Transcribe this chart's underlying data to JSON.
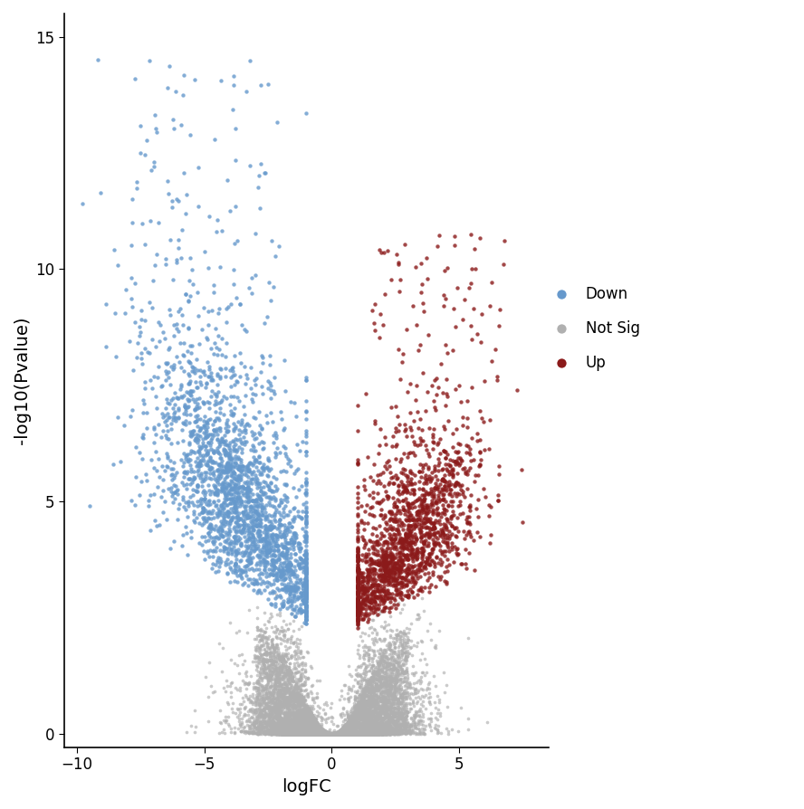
{
  "title": "",
  "xlabel": "logFC",
  "ylabel": "-log10(Pvalue)",
  "xlim": [
    -10.5,
    8.5
  ],
  "ylim": [
    -0.3,
    15.5
  ],
  "xticks": [
    -10,
    -5,
    0,
    5
  ],
  "yticks": [
    0,
    5,
    10,
    15
  ],
  "fc_threshold": 1.0,
  "pval_threshold": 2.0,
  "down_color": "#6699cc",
  "up_color": "#8b1a1a",
  "notsig_color": "#b0b0b0",
  "point_size": 7,
  "alpha_notsig": 0.65,
  "alpha_sig": 0.8,
  "legend_labels": [
    "Down",
    "Not Sig",
    "Up"
  ],
  "legend_colors": [
    "#6699cc",
    "#b0b0b0",
    "#8b1a1a"
  ],
  "seed": 123,
  "background_color": "#ffffff",
  "spine_color": "#000000",
  "label_fontsize": 14,
  "tick_fontsize": 12,
  "legend_fontsize": 12
}
